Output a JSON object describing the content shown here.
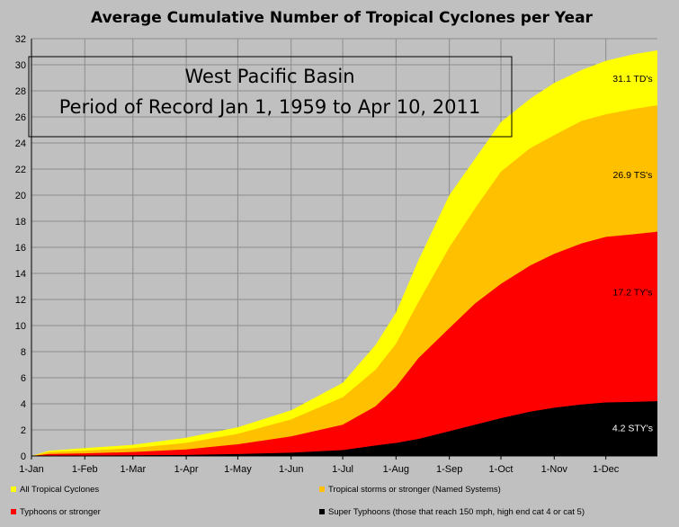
{
  "chart_data": {
    "type": "area",
    "title": "Average Cumulative Number of Tropical Cyclones per Year",
    "annotation_box": {
      "line1": "West Pacific Basin",
      "line2": "Period of Record Jan 1, 1959 to Apr 10, 2011"
    },
    "ylim": [
      0,
      32
    ],
    "y_ticks": [
      0,
      2,
      4,
      6,
      8,
      10,
      12,
      14,
      16,
      18,
      20,
      22,
      24,
      26,
      28,
      30,
      32
    ],
    "x_ticks": [
      {
        "label": "1-Jan",
        "day": 0
      },
      {
        "label": "1-Feb",
        "day": 31
      },
      {
        "label": "1-Mar",
        "day": 59
      },
      {
        "label": "1-Apr",
        "day": 90
      },
      {
        "label": "1-May",
        "day": 120
      },
      {
        "label": "1-Jun",
        "day": 151
      },
      {
        "label": "1-Jul",
        "day": 181
      },
      {
        "label": "1-Aug",
        "day": 212
      },
      {
        "label": "1-Sep",
        "day": 243
      },
      {
        "label": "1-Oct",
        "day": 273
      },
      {
        "label": "1-Nov",
        "day": 304
      },
      {
        "label": "1-Dec",
        "day": 334
      }
    ],
    "grid": true,
    "legend_placement": "bottom",
    "series": [
      {
        "name": "All Tropical Cyclones",
        "color": "#ffff00",
        "end_label": "31.1 TD's",
        "label_color": "#000000",
        "label_at": {
          "day": 336,
          "value": 28.7
        },
        "points": [
          [
            0,
            0
          ],
          [
            10,
            0.4
          ],
          [
            31,
            0.6
          ],
          [
            59,
            0.85
          ],
          [
            90,
            1.4
          ],
          [
            120,
            2.2
          ],
          [
            151,
            3.5
          ],
          [
            181,
            5.6
          ],
          [
            200,
            8.5
          ],
          [
            212,
            11.0
          ],
          [
            225,
            15.0
          ],
          [
            243,
            20.0
          ],
          [
            258,
            22.8
          ],
          [
            273,
            25.6
          ],
          [
            290,
            27.4
          ],
          [
            304,
            28.6
          ],
          [
            320,
            29.6
          ],
          [
            334,
            30.3
          ],
          [
            350,
            30.8
          ],
          [
            364,
            31.1
          ]
        ]
      },
      {
        "name": "Tropical storms or stronger (Named Systems)",
        "color": "#ffc000",
        "end_label": "26.9 TS's",
        "label_color": "#000000",
        "label_at": {
          "day": 336,
          "value": 21.3
        },
        "points": [
          [
            0,
            0
          ],
          [
            10,
            0.3
          ],
          [
            31,
            0.4
          ],
          [
            59,
            0.6
          ],
          [
            90,
            1.0
          ],
          [
            120,
            1.7
          ],
          [
            151,
            2.8
          ],
          [
            181,
            4.5
          ],
          [
            200,
            6.6
          ],
          [
            212,
            8.6
          ],
          [
            225,
            11.8
          ],
          [
            243,
            16.0
          ],
          [
            258,
            19.0
          ],
          [
            273,
            21.8
          ],
          [
            290,
            23.6
          ],
          [
            304,
            24.6
          ],
          [
            320,
            25.7
          ],
          [
            334,
            26.2
          ],
          [
            350,
            26.6
          ],
          [
            364,
            26.9
          ]
        ]
      },
      {
        "name": "Typhoons or stronger",
        "color": "#ff0000",
        "end_label": "17.2 TY's",
        "label_color": "#000000",
        "label_at": {
          "day": 336,
          "value": 12.3
        },
        "points": [
          [
            0,
            0
          ],
          [
            10,
            0.15
          ],
          [
            31,
            0.2
          ],
          [
            59,
            0.3
          ],
          [
            90,
            0.5
          ],
          [
            120,
            0.9
          ],
          [
            151,
            1.5
          ],
          [
            181,
            2.4
          ],
          [
            200,
            3.8
          ],
          [
            212,
            5.3
          ],
          [
            225,
            7.5
          ],
          [
            243,
            9.8
          ],
          [
            258,
            11.7
          ],
          [
            273,
            13.2
          ],
          [
            290,
            14.6
          ],
          [
            304,
            15.5
          ],
          [
            320,
            16.3
          ],
          [
            334,
            16.8
          ],
          [
            350,
            17.0
          ],
          [
            364,
            17.2
          ]
        ]
      },
      {
        "name": "Super Typhoons (those that reach 150 mph, high end cat 4 or cat 5)",
        "color": "#000000",
        "end_label": "4.2 STY's",
        "label_color": "#ffffff",
        "label_at": {
          "day": 336,
          "value": 1.9
        },
        "points": [
          [
            0,
            0
          ],
          [
            31,
            0.03
          ],
          [
            59,
            0.05
          ],
          [
            90,
            0.08
          ],
          [
            120,
            0.15
          ],
          [
            151,
            0.25
          ],
          [
            181,
            0.45
          ],
          [
            200,
            0.8
          ],
          [
            212,
            1.0
          ],
          [
            225,
            1.3
          ],
          [
            243,
            1.9
          ],
          [
            258,
            2.4
          ],
          [
            273,
            2.9
          ],
          [
            290,
            3.4
          ],
          [
            304,
            3.7
          ],
          [
            320,
            3.95
          ],
          [
            334,
            4.1
          ],
          [
            350,
            4.15
          ],
          [
            364,
            4.2
          ]
        ]
      }
    ]
  }
}
